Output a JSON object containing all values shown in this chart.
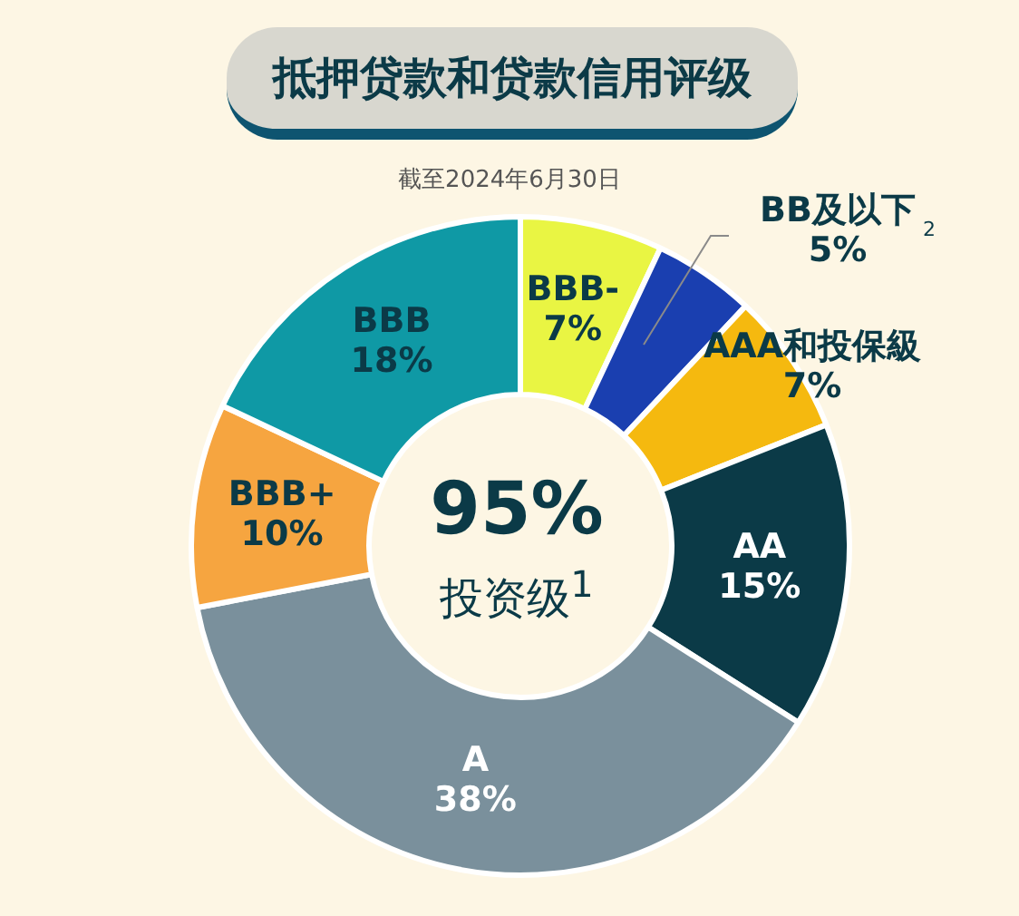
{
  "chart_data": {
    "type": "donut",
    "title": "抵押贷款和贷款信用评级",
    "subtitle": "截至2024年6月30日",
    "categories": [
      "BBB-",
      "BB及以下$^{2}$",
      "AAA和投保級",
      "AA",
      "A",
      "BBB+",
      "BBB"
    ],
    "values": [
      7,
      5,
      7,
      15,
      38,
      10,
      18
    ],
    "colors": [
      "#e9f543",
      "#1a3fb0",
      "#f5b90f",
      "#0b3a47",
      "#7a909c",
      "#f6a540",
      "#0f99a5"
    ],
    "value_labels": [
      "7%",
      "5%",
      "7%",
      "15%",
      "38%",
      "10%",
      "18%"
    ],
    "annotations": [
      "95%",
      "投资级$^{1}$"
    ],
    "legend": false
  }
}
